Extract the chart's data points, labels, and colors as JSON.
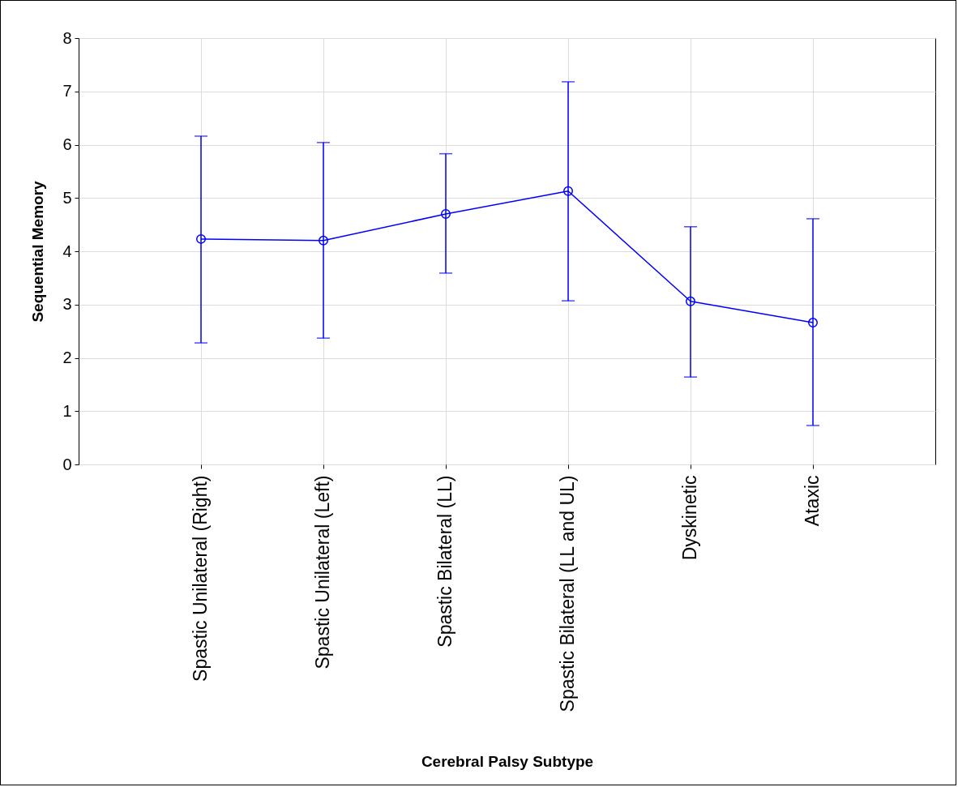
{
  "chart_data": {
    "type": "line",
    "xlabel": "Cerebral Palsy Subtype",
    "ylabel": "Sequential Memory",
    "categories": [
      "Spastic Unilateral (Right)",
      "Spastic Unilateral (Left)",
      "Spastic Bilateral (LL)",
      "Spastic Bilateral (LL and UL)",
      "Dyskinetic",
      "Ataxic"
    ],
    "series": [
      {
        "color": "#0000ff",
        "values": [
          4.23,
          4.2,
          4.7,
          5.13,
          3.06,
          2.66
        ],
        "errors": [
          [
            2.28,
            6.16
          ],
          [
            2.37,
            6.04
          ],
          [
            3.59,
            5.83
          ],
          [
            3.07,
            7.18
          ],
          [
            1.64,
            4.46
          ],
          [
            0.73,
            4.61
          ]
        ]
      }
    ],
    "ylim": [
      0,
      8
    ],
    "yticks": [
      0,
      1,
      2,
      3,
      4,
      5,
      6,
      7,
      8
    ],
    "grid": true,
    "marker": "circle",
    "line_style": "solid"
  }
}
